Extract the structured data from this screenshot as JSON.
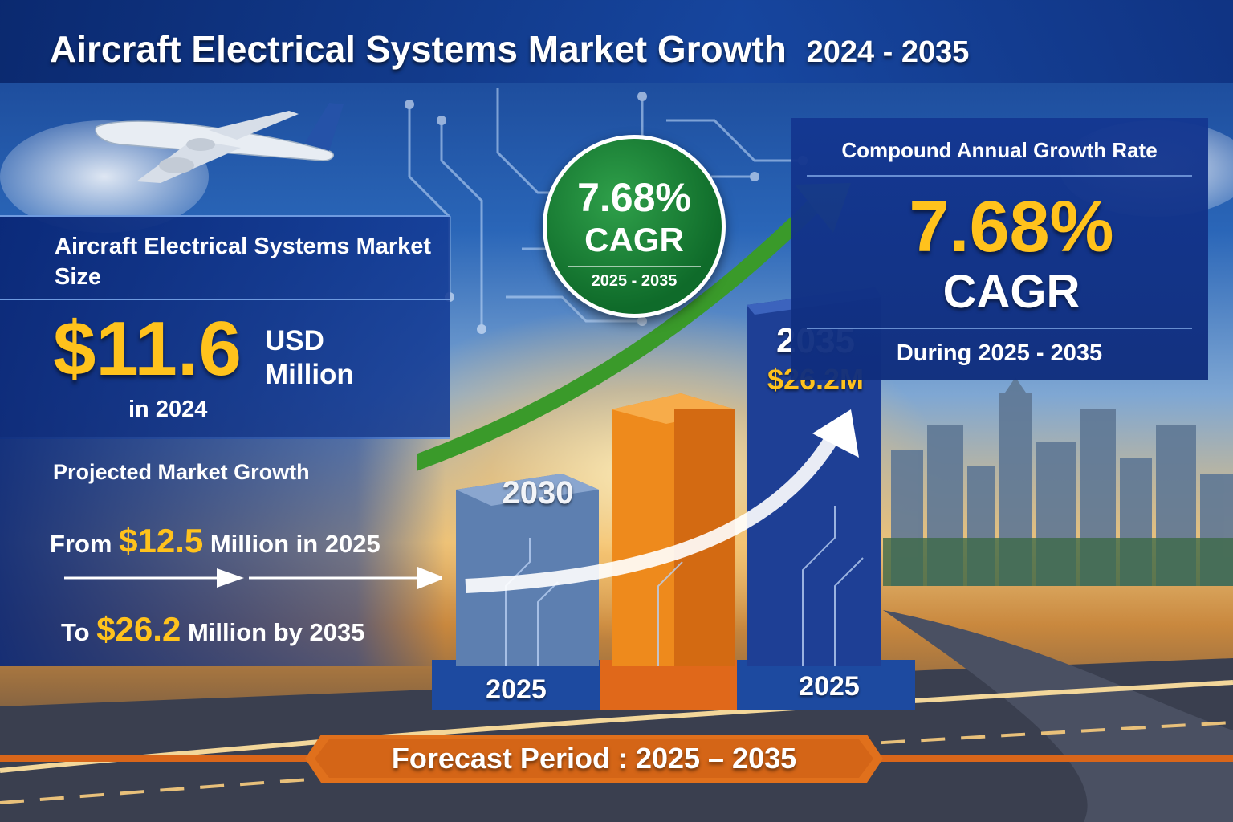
{
  "title": {
    "main": "Aircraft Electrical Systems Market Growth",
    "years": "2024 - 2035"
  },
  "market_size": {
    "heading": "Aircraft Electrical Systems Market Size",
    "value": "$11.6",
    "unit": "USD Million",
    "year": "in 2024"
  },
  "projected_growth": {
    "heading": "Projected Market Growth",
    "from_prefix": "From",
    "from_value": "$12.5",
    "from_suffix": "Million in 2025",
    "to_prefix": "To",
    "to_value": "$26.2",
    "to_suffix": "Million by 2035"
  },
  "cagr_badge": {
    "rate": "7.68%",
    "label": "CAGR",
    "years": "2025 - 2035"
  },
  "cagr_panel": {
    "heading": "Compound Annual Growth Rate",
    "rate": "7.68%",
    "label": "CAGR",
    "period": "During 2025 - 2035"
  },
  "bars": {
    "bar1_label": "2030",
    "bar3_year": "2035",
    "bar3_value": "$26.2M",
    "base_left": "2025",
    "base_right": "2025"
  },
  "forecast": {
    "text": "Forecast Period : 2025 – 2035"
  },
  "colors": {
    "gold": "#ffc21c",
    "navy": "#17408f",
    "orange": "#e8761c",
    "green": "#1f8a3a"
  }
}
